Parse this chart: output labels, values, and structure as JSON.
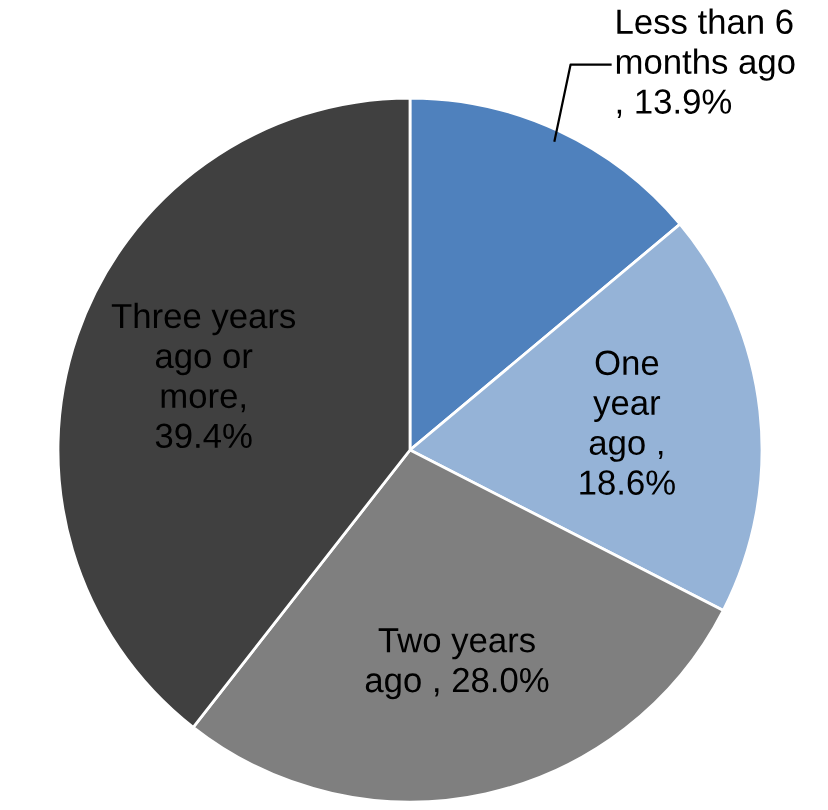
{
  "chart_data": {
    "type": "pie",
    "categories": [
      "Less than 6\nmonths ago",
      "One\nyear\nago ",
      "Two years\nago ",
      "Three years\nago or\nmore"
    ],
    "values": [
      13.9,
      18.6,
      28.0,
      39.4
    ],
    "value_labels": [
      "\n, 13.9%",
      ",\n18.6%",
      ", 28.0%",
      ",\n39.4%"
    ],
    "colors": [
      "#4f81bd",
      "#95b3d7",
      "#7f7f7f",
      "#404040"
    ]
  }
}
